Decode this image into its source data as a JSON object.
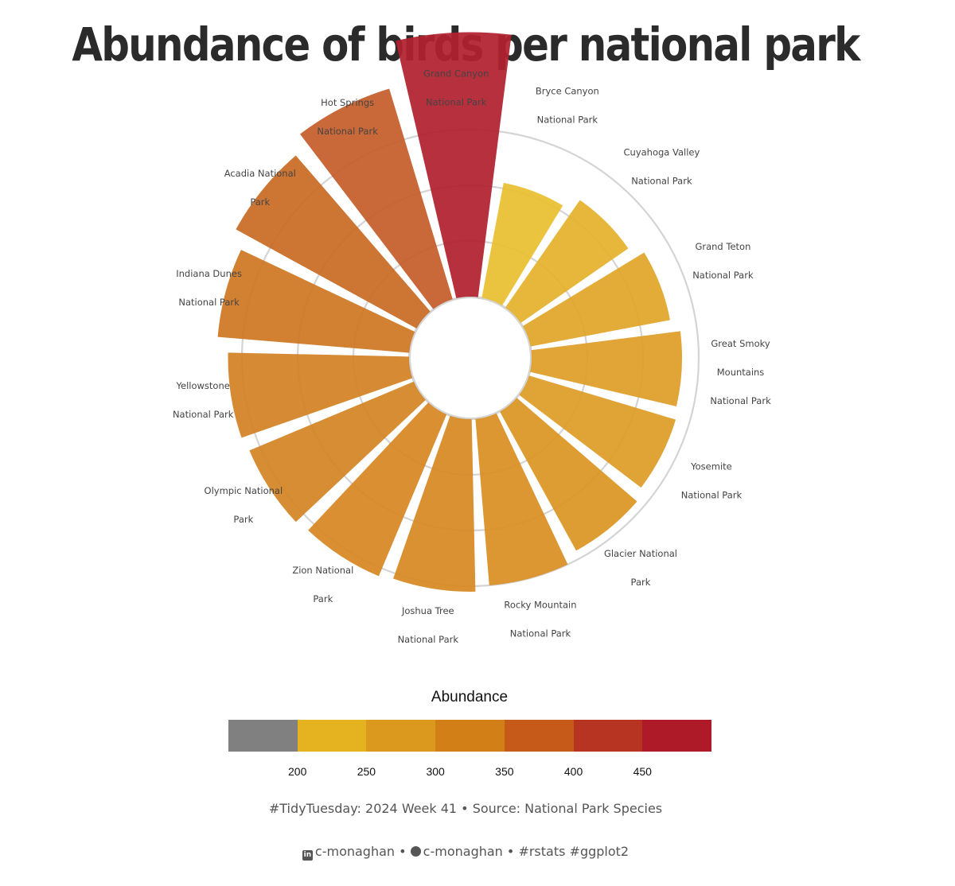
{
  "title": "Abundance of birds per national park",
  "chart_data": {
    "type": "bar",
    "coord": "polar",
    "categories": [
      "Bryce Canyon National Park",
      "Cuyahoga Valley National Park",
      "Grand Teton National Park",
      "Great Smoky Mountains National Park",
      "Yosemite National Park",
      "Glacier National Park",
      "Rocky Mountain National Park",
      "Joshua Tree National Park",
      "Zion National Park",
      "Olympic National Park",
      "Yellowstone National Park",
      "Indiana Dunes National Park",
      "Acadia National Park",
      "Hot Springs National Park",
      "Grand Canyon National Park"
    ],
    "label_lines": [
      [
        "Bryce Canyon",
        "National Park"
      ],
      [
        "Cuyahoga Valley",
        "National Park"
      ],
      [
        "Grand Teton",
        "National Park"
      ],
      [
        "Great Smoky",
        "Mountains",
        "National Park"
      ],
      [
        "Yosemite",
        "National Park"
      ],
      [
        "Glacier National",
        "Park"
      ],
      [
        "Rocky Mountain",
        "National Park"
      ],
      [
        "Joshua Tree",
        "National Park"
      ],
      [
        "Zion National",
        "Park"
      ],
      [
        "Olympic National",
        "Park"
      ],
      [
        "Yellowstone",
        "National Park"
      ],
      [
        "Indiana Dunes",
        "National Park"
      ],
      [
        "Acadia National",
        "Park"
      ],
      [
        "Hot Springs",
        "National Park"
      ],
      [
        "Grand Canyon",
        "National Park"
      ]
    ],
    "values": [
      210,
      235,
      255,
      270,
      275,
      285,
      300,
      310,
      315,
      320,
      325,
      345,
      370,
      395,
      475
    ],
    "r_range": [
      0,
      500
    ],
    "legend": {
      "title": "Abundance",
      "position": "bottom",
      "bins": [
        {
          "to": 200,
          "color": "#808080"
        },
        {
          "from": 200,
          "to": 250,
          "color": "#E5B31F"
        },
        {
          "from": 250,
          "to": 300,
          "color": "#DB9A1D"
        },
        {
          "from": 300,
          "to": 350,
          "color": "#D37F18"
        },
        {
          "from": 350,
          "to": 400,
          "color": "#C55A19"
        },
        {
          "from": 400,
          "to": 450,
          "color": "#B73422"
        },
        {
          "from": 450,
          "color": "#AE1A28"
        }
      ],
      "tick_labels": [
        "200",
        "250",
        "300",
        "350",
        "400",
        "450"
      ]
    }
  },
  "caption": {
    "source": "#TidyTuesday: 2024 Week 41 • Source: National Park Species",
    "linkedin_handle": "c-monaghan",
    "separator": "•",
    "github_handle": "c-monaghan",
    "tags": "#rstats #ggplot2",
    "linkedin_icon": "linkedin-icon",
    "github_icon": "github-icon"
  }
}
